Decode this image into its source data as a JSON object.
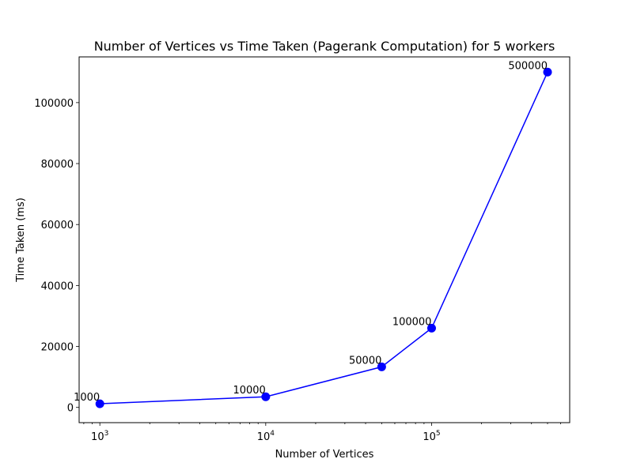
{
  "chart_data": {
    "type": "line",
    "title": "Number of Vertices vs Time Taken (Pagerank Computation) for 5 workers",
    "xlabel": "Number of Vertices",
    "ylabel": "Time Taken (ms)",
    "x_scale": "log",
    "xlim": [
      750,
      680000
    ],
    "ylim": [
      -5000,
      115000
    ],
    "x_ticks": [
      {
        "value": 1000,
        "base": "10",
        "exp": "3"
      },
      {
        "value": 10000,
        "base": "10",
        "exp": "4"
      },
      {
        "value": 100000,
        "base": "10",
        "exp": "5"
      }
    ],
    "y_ticks": [
      0,
      20000,
      40000,
      60000,
      80000,
      100000
    ],
    "y_tick_labels": [
      "0",
      "20000",
      "40000",
      "60000",
      "80000",
      "100000"
    ],
    "grid": false,
    "line_color": "#0000ff",
    "series": [
      {
        "x": [
          1000,
          10000,
          50000,
          100000,
          500000
        ],
        "y": [
          1200,
          3500,
          13300,
          26000,
          110000
        ],
        "point_labels": [
          "1000",
          "10000",
          "50000",
          "100000",
          "500000"
        ]
      }
    ]
  }
}
